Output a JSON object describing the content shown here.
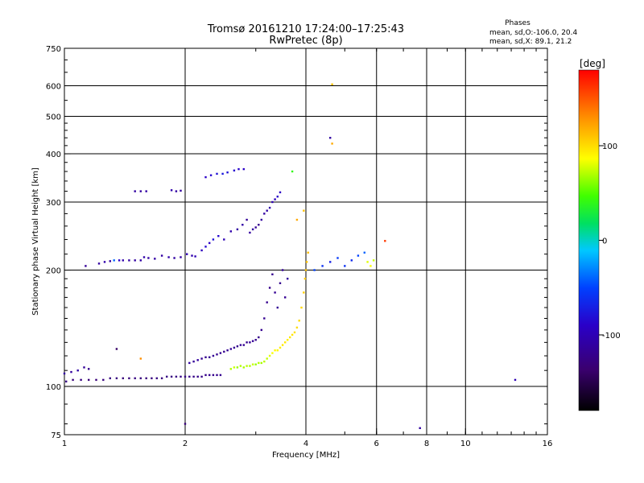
{
  "header": {
    "title_line1": "Tromsø 20161210 17:24:00–17:25:43",
    "title_line2": "RwPretec (8p)",
    "stats_heading": "Phases",
    "stats_o": "mean, sd,O:-106.0, 20.4",
    "stats_x": "mean, sd,X:  89.1, 21.2"
  },
  "chart_data": {
    "type": "scatter",
    "xlabel": "Frequency [MHz]",
    "ylabel": "Stationary phase Virtual Height [km]",
    "x_scale": "log",
    "y_scale": "log",
    "xlim": [
      1,
      16
    ],
    "ylim": [
      75,
      750
    ],
    "x_ticks": [
      {
        "value": 1,
        "label": "1"
      },
      {
        "value": 2,
        "label": "2"
      },
      {
        "value": 4,
        "label": "4"
      },
      {
        "value": 6,
        "label": "6"
      },
      {
        "value": 8,
        "label": "8"
      },
      {
        "value": 10,
        "label": "10"
      },
      {
        "value": 16,
        "label": "16"
      }
    ],
    "x_gridlines": [
      2,
      4,
      6,
      8,
      10
    ],
    "y_ticks": [
      {
        "value": 75,
        "label": "75"
      },
      {
        "value": 100,
        "label": "100"
      },
      {
        "value": 200,
        "label": "200"
      },
      {
        "value": 300,
        "label": "300"
      },
      {
        "value": 400,
        "label": "400"
      },
      {
        "value": 500,
        "label": "500"
      },
      {
        "value": 600,
        "label": "600"
      },
      {
        "value": 750,
        "label": "750"
      }
    ],
    "y_gridlines": [
      100,
      200,
      300,
      400,
      500,
      600
    ],
    "grid": true,
    "colorbar": {
      "label": "[deg]",
      "min": -180,
      "max": 180,
      "ticks": [
        {
          "value": 100,
          "label": "100"
        },
        {
          "value": 0,
          "label": "0"
        },
        {
          "value": -100,
          "label": "-100"
        }
      ]
    },
    "points": [
      [
        1.0,
        108,
        -110
      ],
      [
        1.04,
        109,
        -112
      ],
      [
        1.08,
        110,
        -108
      ],
      [
        1.12,
        112,
        -115
      ],
      [
        1.15,
        111,
        -120
      ],
      [
        1.01,
        103,
        -125
      ],
      [
        1.05,
        104,
        -130
      ],
      [
        1.1,
        104,
        -128
      ],
      [
        1.15,
        104,
        -132
      ],
      [
        1.2,
        104,
        -130
      ],
      [
        1.25,
        104,
        -128
      ],
      [
        1.3,
        105,
        -126
      ],
      [
        1.35,
        105,
        -128
      ],
      [
        1.4,
        105,
        -130
      ],
      [
        1.45,
        105,
        -129
      ],
      [
        1.5,
        105,
        -127
      ],
      [
        1.55,
        105,
        -128
      ],
      [
        1.6,
        105,
        -130
      ],
      [
        1.65,
        105,
        -128
      ],
      [
        1.7,
        105,
        -126
      ],
      [
        1.75,
        105,
        -128
      ],
      [
        1.8,
        106,
        -125
      ],
      [
        1.85,
        106,
        -127
      ],
      [
        1.9,
        106,
        -126
      ],
      [
        1.95,
        106,
        -125
      ],
      [
        2.0,
        106,
        -124
      ],
      [
        2.05,
        106,
        -123
      ],
      [
        2.1,
        106,
        -124
      ],
      [
        2.15,
        106,
        -122
      ],
      [
        2.2,
        106,
        -124
      ],
      [
        2.25,
        107,
        -122
      ],
      [
        2.3,
        107,
        -120
      ],
      [
        2.35,
        107,
        -121
      ],
      [
        2.4,
        107,
        -120
      ],
      [
        2.45,
        107,
        -119
      ],
      [
        1.13,
        205,
        -115
      ],
      [
        1.22,
        208,
        -110
      ],
      [
        1.26,
        210,
        -105
      ],
      [
        1.3,
        211,
        -112
      ],
      [
        1.33,
        212,
        -40
      ],
      [
        1.37,
        212,
        -90
      ],
      [
        1.4,
        212,
        -105
      ],
      [
        1.45,
        212,
        -110
      ],
      [
        1.5,
        212,
        -110
      ],
      [
        1.55,
        212,
        -108
      ],
      [
        1.58,
        216,
        -105
      ],
      [
        1.62,
        215,
        -110
      ],
      [
        1.68,
        214,
        -108
      ],
      [
        1.75,
        218,
        -110
      ],
      [
        1.82,
        216,
        -105
      ],
      [
        1.88,
        215,
        -110
      ],
      [
        1.95,
        216,
        -108
      ],
      [
        2.02,
        220,
        -100
      ],
      [
        2.08,
        218,
        -105
      ],
      [
        2.12,
        217,
        -100
      ],
      [
        1.5,
        320,
        -110
      ],
      [
        1.55,
        320,
        -112
      ],
      [
        1.6,
        320,
        -108
      ],
      [
        1.85,
        322,
        -105
      ],
      [
        1.9,
        320,
        -110
      ],
      [
        1.95,
        321,
        -112
      ],
      [
        2.25,
        348,
        -90
      ],
      [
        2.32,
        352,
        -85
      ],
      [
        2.4,
        355,
        -80
      ],
      [
        2.48,
        355,
        -75
      ],
      [
        2.55,
        358,
        -80
      ],
      [
        2.65,
        362,
        -85
      ],
      [
        2.72,
        365,
        -88
      ],
      [
        2.8,
        365,
        -90
      ],
      [
        2.2,
        225,
        -95
      ],
      [
        2.25,
        230,
        -85
      ],
      [
        2.3,
        235,
        -90
      ],
      [
        2.35,
        240,
        -80
      ],
      [
        2.42,
        245,
        -85
      ],
      [
        2.5,
        240,
        -100
      ],
      [
        2.6,
        252,
        -105
      ],
      [
        2.7,
        255,
        -110
      ],
      [
        2.78,
        262,
        -108
      ],
      [
        2.85,
        270,
        -115
      ],
      [
        2.9,
        250,
        -112
      ],
      [
        2.95,
        255,
        -110
      ],
      [
        3.0,
        258,
        -115
      ],
      [
        3.05,
        262,
        -120
      ],
      [
        3.1,
        270,
        -112
      ],
      [
        3.15,
        280,
        -110
      ],
      [
        3.2,
        285,
        -108
      ],
      [
        3.25,
        290,
        -105
      ],
      [
        3.3,
        300,
        -100
      ],
      [
        3.35,
        305,
        -95
      ],
      [
        3.4,
        310,
        -90
      ],
      [
        3.45,
        318,
        -92
      ],
      [
        2.6,
        111,
        70
      ],
      [
        2.65,
        112,
        75
      ],
      [
        2.7,
        112,
        65
      ],
      [
        2.75,
        113,
        70
      ],
      [
        2.8,
        112,
        68
      ],
      [
        2.85,
        113,
        72
      ],
      [
        2.9,
        113,
        70
      ],
      [
        2.95,
        114,
        75
      ],
      [
        3.0,
        114,
        65
      ],
      [
        3.05,
        115,
        70
      ],
      [
        3.1,
        115,
        68
      ],
      [
        3.15,
        116,
        72
      ],
      [
        3.2,
        118,
        74
      ],
      [
        3.25,
        120,
        80
      ],
      [
        3.3,
        122,
        85
      ],
      [
        3.35,
        124,
        88
      ],
      [
        3.4,
        124,
        90
      ],
      [
        3.45,
        126,
        92
      ],
      [
        3.5,
        128,
        95
      ],
      [
        3.55,
        130,
        95
      ],
      [
        3.6,
        132,
        92
      ],
      [
        3.65,
        134,
        95
      ],
      [
        3.7,
        136,
        96
      ],
      [
        3.75,
        138,
        98
      ],
      [
        3.8,
        142,
        100
      ],
      [
        3.85,
        148,
        100
      ],
      [
        3.9,
        160,
        102
      ],
      [
        3.95,
        175,
        105
      ],
      [
        3.98,
        190,
        108
      ],
      [
        4.0,
        200,
        110
      ],
      [
        4.02,
        210,
        110
      ],
      [
        4.05,
        222,
        112
      ],
      [
        2.05,
        115,
        -110
      ],
      [
        2.1,
        116,
        -115
      ],
      [
        2.15,
        117,
        -112
      ],
      [
        2.2,
        118,
        -118
      ],
      [
        2.25,
        119,
        -120
      ],
      [
        2.3,
        119,
        -118
      ],
      [
        2.35,
        120,
        -116
      ],
      [
        2.4,
        121,
        -120
      ],
      [
        2.45,
        122,
        -118
      ],
      [
        2.5,
        123,
        -120
      ],
      [
        2.55,
        124,
        -118
      ],
      [
        2.6,
        125,
        -115
      ],
      [
        2.65,
        126,
        -118
      ],
      [
        2.7,
        127,
        -120
      ],
      [
        2.75,
        128,
        -116
      ],
      [
        2.8,
        128,
        -118
      ],
      [
        2.85,
        130,
        -120
      ],
      [
        2.9,
        130,
        -118
      ],
      [
        2.95,
        131,
        -116
      ],
      [
        3.0,
        132,
        -120
      ],
      [
        3.05,
        134,
        -122
      ],
      [
        3.1,
        140,
        -120
      ],
      [
        3.15,
        150,
        -118
      ],
      [
        3.2,
        165,
        -120
      ],
      [
        3.25,
        180,
        -122
      ],
      [
        3.3,
        195,
        -120
      ],
      [
        3.35,
        175,
        -118
      ],
      [
        3.4,
        160,
        -116
      ],
      [
        3.45,
        185,
        -120
      ],
      [
        3.5,
        200,
        -115
      ],
      [
        3.55,
        170,
        -118
      ],
      [
        3.6,
        190,
        -112
      ],
      [
        4.2,
        200,
        -50
      ],
      [
        4.4,
        205,
        -60
      ],
      [
        4.6,
        210,
        -70
      ],
      [
        4.8,
        215,
        -55
      ],
      [
        5.0,
        205,
        -60
      ],
      [
        5.2,
        212,
        -65
      ],
      [
        5.4,
        218,
        -50
      ],
      [
        5.6,
        222,
        -40
      ],
      [
        5.7,
        210,
        80
      ],
      [
        5.8,
        205,
        85
      ],
      [
        5.9,
        212,
        75
      ],
      [
        4.6,
        440,
        -110
      ],
      [
        4.65,
        605,
        110
      ],
      [
        4.65,
        425,
        120
      ],
      [
        6.3,
        238,
        160
      ],
      [
        7.7,
        78,
        -110
      ],
      [
        13.3,
        104,
        -100
      ],
      [
        2.0,
        80,
        -130
      ],
      [
        1.35,
        125,
        -140
      ],
      [
        1.55,
        118,
        130
      ],
      [
        3.8,
        270,
        120
      ],
      [
        3.95,
        285,
        110
      ],
      [
        3.7,
        360,
        40
      ]
    ]
  }
}
